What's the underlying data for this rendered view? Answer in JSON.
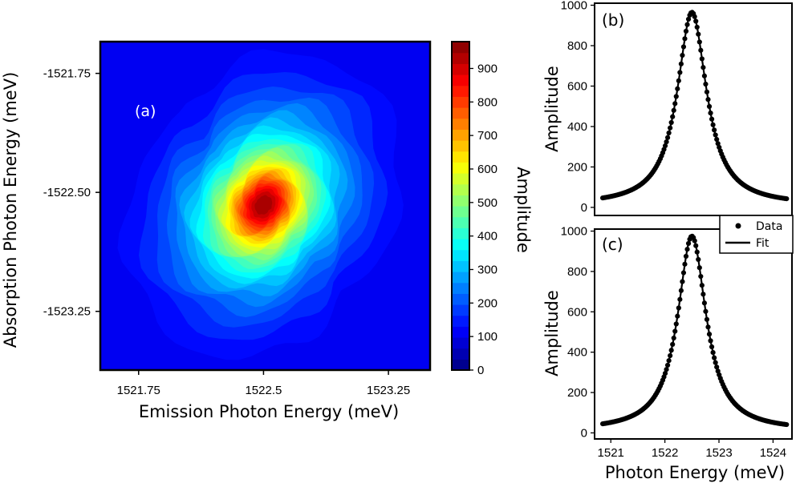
{
  "chart_data": [
    {
      "id": "a",
      "type": "heatmap",
      "panel_label": "(a)",
      "xlabel": "Emission Photon Energy (meV)",
      "ylabel": "Absorption Photon Energy (meV)",
      "xlim": [
        1521.52,
        1523.5
      ],
      "ylim": [
        -1521.55,
        -1523.62
      ],
      "x_ticks": [
        1521.75,
        1522.5,
        1523.25
      ],
      "x_tick_labels": [
        "1521.75",
        "1522.5",
        "1523.25"
      ],
      "y_ticks": [
        -1521.75,
        -1522.5,
        -1523.25
      ],
      "y_tick_labels": [
        "-1521.75",
        "-1522.50",
        "-1523.25"
      ],
      "peak": {
        "x": 1522.5,
        "y": -1522.58,
        "amplitude": 980
      },
      "colorbar": {
        "label": "Amplitude",
        "range": [
          0,
          980
        ],
        "ticks": [
          0,
          100,
          200,
          300,
          400,
          500,
          600,
          700,
          800,
          900
        ],
        "tick_labels": [
          "0",
          "100",
          "200",
          "300",
          "400",
          "500",
          "600",
          "700",
          "800",
          "900"
        ],
        "colormap": [
          "#00007f",
          "#0000ff",
          "#007fff",
          "#00ffff",
          "#7fff7f",
          "#ffff00",
          "#ff7f00",
          "#ff0000",
          "#7f0000"
        ]
      }
    },
    {
      "id": "b",
      "type": "line",
      "panel_label": "(b)",
      "xlabel": "",
      "ylabel": "Amplitude",
      "xlim": [
        1520.7,
        1524.35
      ],
      "ylim": [
        -40,
        1010
      ],
      "y_ticks": [
        0,
        200,
        400,
        600,
        800,
        1000
      ],
      "y_tick_labels": [
        "0",
        "200",
        "400",
        "600",
        "800",
        "1000"
      ],
      "series": [
        {
          "name": "Data",
          "style": "markers",
          "x_start": 1520.85,
          "x_end": 1524.25,
          "center": 1522.5,
          "amplitude": 965,
          "width": 0.33,
          "offset": 10
        },
        {
          "name": "Fit",
          "style": "line",
          "x_start": 1520.85,
          "x_end": 1524.25,
          "center": 1522.5,
          "amplitude": 965,
          "width": 0.33,
          "offset": 10
        }
      ]
    },
    {
      "id": "c",
      "type": "line",
      "panel_label": "(c)",
      "xlabel": "Photon Energy (meV)",
      "ylabel": "Amplitude",
      "xlim": [
        1520.7,
        1524.35
      ],
      "ylim": [
        -30,
        1010
      ],
      "x_ticks": [
        1521,
        1522,
        1523,
        1524
      ],
      "x_tick_labels": [
        "1521",
        "1522",
        "1523",
        "1524"
      ],
      "y_ticks": [
        0,
        200,
        400,
        600,
        800,
        1000
      ],
      "y_tick_labels": [
        "0",
        "200",
        "400",
        "600",
        "800",
        "1000"
      ],
      "series": [
        {
          "name": "Data",
          "style": "markers",
          "x_start": 1520.85,
          "x_end": 1524.25,
          "center": 1522.5,
          "amplitude": 975,
          "width": 0.32,
          "offset": 10
        },
        {
          "name": "Fit",
          "style": "line",
          "x_start": 1520.85,
          "x_end": 1524.25,
          "center": 1522.5,
          "amplitude": 975,
          "width": 0.32,
          "offset": 10
        }
      ]
    }
  ],
  "legend": {
    "placement": "between panels (b) and (c), right",
    "entries": [
      "Data",
      "Fit"
    ]
  },
  "colors": {
    "data": "#000000",
    "fit": "#000000",
    "panel_a_label": "#ffffff"
  }
}
